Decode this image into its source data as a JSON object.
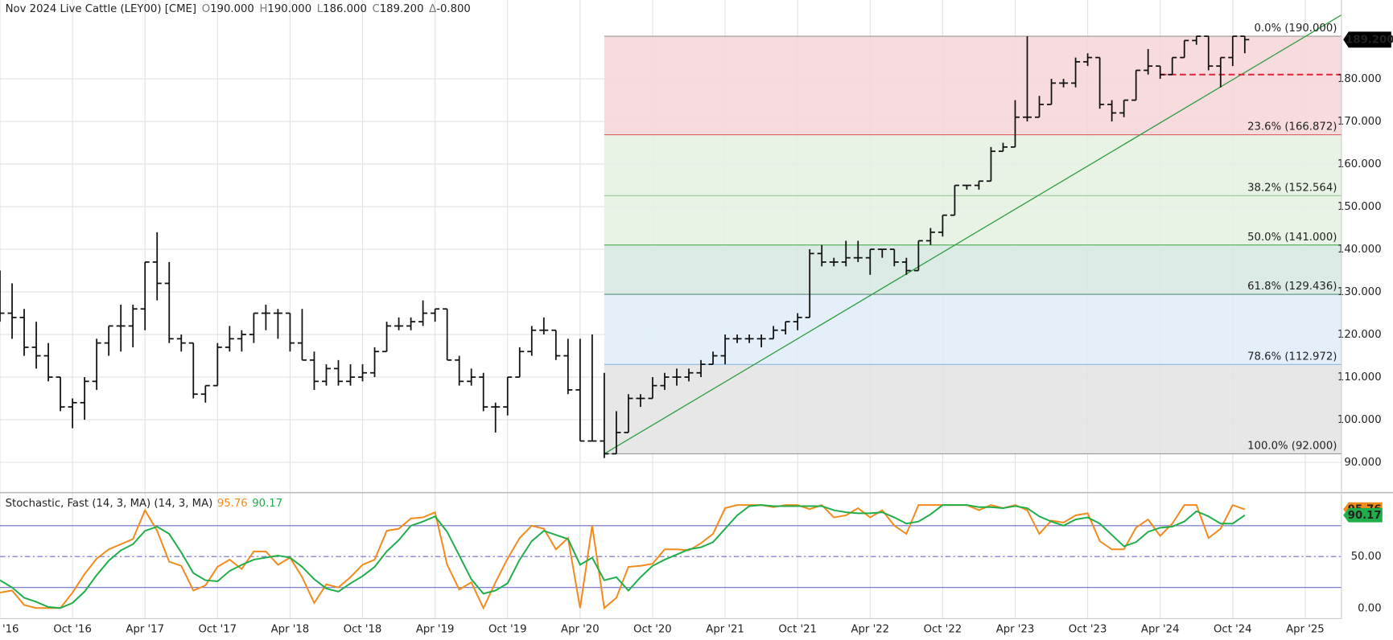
{
  "chart_data": [
    {
      "type": "ohlc",
      "title": "Nov 2024 Live Cattle (LEY00) [CME]",
      "quote": [
        {
          "label": "O",
          "value": "190.000"
        },
        {
          "label": "H",
          "value": "190.000"
        },
        {
          "label": "L",
          "value": "186.000"
        },
        {
          "label": "C",
          "value": "189.200"
        },
        {
          "label": "Δ",
          "value": "-0.800"
        }
      ],
      "x": [
        "2016-04",
        "2016-05",
        "2016-06",
        "2016-07",
        "2016-08",
        "2016-09",
        "2016-10",
        "2016-11",
        "2016-12",
        "2017-01",
        "2017-02",
        "2017-03",
        "2017-04",
        "2017-05",
        "2017-06",
        "2017-07",
        "2017-08",
        "2017-09",
        "2017-10",
        "2017-11",
        "2017-12",
        "2018-01",
        "2018-02",
        "2018-03",
        "2018-04",
        "2018-05",
        "2018-06",
        "2018-07",
        "2018-08",
        "2018-09",
        "2018-10",
        "2018-11",
        "2018-12",
        "2019-01",
        "2019-02",
        "2019-03",
        "2019-04",
        "2019-05",
        "2019-06",
        "2019-07",
        "2019-08",
        "2019-09",
        "2019-10",
        "2019-11",
        "2019-12",
        "2020-01",
        "2020-02",
        "2020-03",
        "2020-04",
        "2020-05",
        "2020-06",
        "2020-07",
        "2020-08",
        "2020-09",
        "2020-10",
        "2020-11",
        "2020-12",
        "2021-01",
        "2021-02",
        "2021-03",
        "2021-04",
        "2021-05",
        "2021-06",
        "2021-07",
        "2021-08",
        "2021-09",
        "2021-10",
        "2021-11",
        "2021-12",
        "2022-01",
        "2022-02",
        "2022-03",
        "2022-04",
        "2022-05",
        "2022-06",
        "2022-07",
        "2022-08",
        "2022-09",
        "2022-10",
        "2022-11",
        "2022-12",
        "2023-01",
        "2023-02",
        "2023-03",
        "2023-04",
        "2023-05",
        "2023-06",
        "2023-07",
        "2023-08",
        "2023-09",
        "2023-10",
        "2023-11",
        "2023-12",
        "2024-01",
        "2024-02",
        "2024-03",
        "2024-04",
        "2024-05",
        "2024-06",
        "2024-07",
        "2024-08",
        "2024-09",
        "2024-10",
        "2024-11"
      ],
      "open": [
        131,
        125,
        124,
        117,
        115,
        110,
        103,
        104,
        109,
        118,
        122,
        122,
        126,
        137,
        132,
        119,
        118,
        106,
        108,
        117,
        119,
        120,
        125,
        125,
        125,
        118,
        114,
        109,
        112,
        109,
        110,
        111,
        116,
        122,
        122,
        123,
        125,
        126,
        114,
        109,
        110,
        103,
        103,
        110,
        116,
        121,
        121,
        115,
        107,
        95,
        95,
        92,
        97,
        105,
        105,
        108,
        110,
        110,
        111,
        113,
        115,
        119,
        119,
        119,
        119,
        121,
        123,
        124,
        139,
        137,
        137,
        138,
        138,
        140,
        140,
        137,
        135,
        142,
        144,
        148,
        155,
        155,
        156,
        163,
        164,
        171,
        171,
        174,
        179,
        179,
        184,
        185,
        174,
        172,
        175,
        182,
        183,
        181,
        185,
        189,
        190,
        183,
        185,
        190
      ],
      "high": [
        135,
        132,
        126,
        123,
        118,
        110,
        105,
        110,
        119,
        122,
        127,
        127,
        137,
        144,
        137,
        120,
        118,
        108,
        118,
        122,
        121,
        125,
        127,
        126,
        125,
        126,
        116,
        113,
        114,
        113,
        113,
        117,
        123,
        124,
        124,
        128,
        126,
        126,
        115,
        112,
        111,
        104,
        110,
        117,
        122,
        124,
        121,
        119,
        119,
        120,
        111,
        102,
        106,
        106,
        110,
        111,
        112,
        112,
        114,
        116,
        120,
        120,
        120,
        120,
        122,
        123,
        125,
        140,
        141,
        138,
        142,
        142,
        140,
        140,
        140,
        138,
        142,
        145,
        148,
        155,
        155,
        156,
        164,
        165,
        175,
        190,
        176,
        180,
        180,
        185,
        186,
        185,
        175,
        175,
        182,
        187,
        183,
        185,
        189,
        190,
        190,
        185,
        190,
        190
      ],
      "low": [
        123,
        119,
        115,
        112,
        109,
        102,
        98,
        100,
        107,
        115,
        116,
        117,
        121,
        128,
        118,
        116,
        105,
        104,
        108,
        116,
        116,
        118,
        121,
        119,
        116,
        114,
        107,
        108,
        108,
        108,
        109,
        110,
        116,
        121,
        121,
        122,
        123,
        114,
        108,
        108,
        102,
        97,
        101,
        110,
        115,
        120,
        114,
        106,
        95,
        95,
        91,
        92,
        97,
        103,
        105,
        107,
        108,
        109,
        110,
        113,
        113,
        118,
        118,
        117,
        119,
        120,
        121,
        124,
        136,
        136,
        136,
        137,
        134,
        138,
        136,
        134,
        135,
        141,
        143,
        148,
        154,
        154,
        156,
        163,
        164,
        170,
        171,
        174,
        178,
        178,
        183,
        173,
        170,
        171,
        175,
        181,
        180,
        181,
        185,
        188,
        182,
        178,
        183,
        186
      ],
      "close": [
        125,
        124,
        117,
        115,
        110,
        103,
        104,
        109,
        118,
        122,
        122,
        126,
        137,
        132,
        119,
        118,
        106,
        108,
        117,
        119,
        120,
        125,
        125,
        125,
        118,
        114,
        109,
        112,
        109,
        110,
        111,
        116,
        122,
        122,
        123,
        125,
        126,
        114,
        109,
        110,
        103,
        103,
        110,
        116,
        121,
        121,
        115,
        107,
        95,
        95,
        92,
        97,
        105,
        105,
        108,
        110,
        110,
        111,
        113,
        115,
        119,
        119,
        119,
        119,
        121,
        123,
        124,
        139,
        137,
        137,
        138,
        138,
        140,
        140,
        137,
        135,
        142,
        144,
        148,
        155,
        155,
        156,
        163,
        164,
        171,
        171,
        174,
        179,
        179,
        184,
        185,
        174,
        172,
        175,
        182,
        183,
        181,
        185,
        189,
        190,
        183,
        185,
        190,
        189.2
      ],
      "close_label": "189.200",
      "color": "#111111",
      "xlim": [
        "2016-04",
        "2025-07"
      ],
      "xticks": [
        {
          "value": "2016-04",
          "label": "'16"
        },
        {
          "value": "2016-10",
          "label": "Oct '16"
        },
        {
          "value": "2017-04",
          "label": "Apr '17"
        },
        {
          "value": "2017-10",
          "label": "Oct '17"
        },
        {
          "value": "2018-04",
          "label": "Apr '18"
        },
        {
          "value": "2018-10",
          "label": "Oct '18"
        },
        {
          "value": "2019-04",
          "label": "Apr '19"
        },
        {
          "value": "2019-10",
          "label": "Oct '19"
        },
        {
          "value": "2020-04",
          "label": "Apr '20"
        },
        {
          "value": "2020-10",
          "label": "Oct '20"
        },
        {
          "value": "2021-04",
          "label": "Apr '21"
        },
        {
          "value": "2021-10",
          "label": "Oct '21"
        },
        {
          "value": "2022-04",
          "label": "Apr '22"
        },
        {
          "value": "2022-10",
          "label": "Oct '22"
        },
        {
          "value": "2023-04",
          "label": "Apr '23"
        },
        {
          "value": "2023-10",
          "label": "Oct '23"
        },
        {
          "value": "2024-04",
          "label": "Apr '24"
        },
        {
          "value": "2024-10",
          "label": "Oct '24"
        },
        {
          "value": "2025-04",
          "label": "Apr '25"
        }
      ],
      "ylim": [
        83.3,
        198.5
      ],
      "yticks": [
        {
          "value": 90,
          "label": "90.000"
        },
        {
          "value": 100,
          "label": "100.000"
        },
        {
          "value": 110,
          "label": "110.000"
        },
        {
          "value": 120,
          "label": "120.000"
        },
        {
          "value": 130,
          "label": "130.000"
        },
        {
          "value": 140,
          "label": "140.000"
        },
        {
          "value": 150,
          "label": "150.000"
        },
        {
          "value": 160,
          "label": "160.000"
        },
        {
          "value": 170,
          "label": "170.000"
        },
        {
          "value": 180,
          "label": "180.000"
        }
      ],
      "grid": true,
      "fib": {
        "start": "2020-06",
        "levels": [
          {
            "value": 190,
            "label": "0.0% (190.000)",
            "color": "#9a9a9a"
          },
          {
            "value": 166.872,
            "label": "23.6% (166.872)",
            "color": "#d9534f",
            "fill": "#f7d7da"
          },
          {
            "value": 152.564,
            "label": "38.2% (152.564)",
            "color": "#9ccc9a",
            "fill": "#e5f1e2"
          },
          {
            "value": 141,
            "label": "50.0% (141.000)",
            "color": "#4caf50",
            "fill": "#e5f1e2"
          },
          {
            "value": 129.436,
            "label": "61.8% (129.436)",
            "color": "#5b8f7e",
            "fill": "#d9e9e4"
          },
          {
            "value": 112.972,
            "label": "78.6% (112.972)",
            "color": "#8cb8e3",
            "fill": "#e1edf9"
          },
          {
            "value": 92,
            "label": "100.0% (92.000)",
            "color": "#9a9a9a",
            "fill": "#e4e4e4"
          }
        ]
      },
      "trendline": {
        "x": [
          "2020-06",
          "2025-07"
        ],
        "y": [
          92,
          195
        ],
        "color": "#2e9e40"
      },
      "support": {
        "from": "2024-04",
        "value": 181,
        "color": "#e0223a"
      }
    },
    {
      "type": "stochastic",
      "title": "Stochastic, Fast (14, 3, MA)  (14, 3, MA)",
      "series": [
        {
          "color": "#f28a1c",
          "values": [
            15,
            17,
            3,
            0,
            0,
            0,
            15,
            33,
            48,
            57,
            62,
            67,
            95,
            75,
            45,
            41,
            17,
            22,
            40,
            47,
            38,
            55,
            55,
            42,
            49,
            30,
            5,
            23,
            20,
            30,
            42,
            47,
            75,
            77,
            87,
            88,
            93,
            42,
            18,
            25,
            0,
            25,
            48,
            68,
            80,
            77,
            57,
            68,
            0,
            80,
            0,
            10,
            40,
            41,
            43,
            57,
            57,
            56,
            63,
            72,
            97,
            100,
            100,
            100,
            98,
            100,
            100,
            96,
            100,
            88,
            90,
            97,
            88,
            95,
            80,
            72,
            100,
            100,
            100,
            100,
            100,
            95,
            100,
            97,
            100,
            95,
            72,
            85,
            83,
            90,
            92,
            65,
            57,
            57,
            78,
            86,
            70,
            82,
            100,
            100,
            68,
            77,
            100,
            95.76
          ]
        },
        {
          "color": "#1fae4a",
          "values": [
            27,
            20,
            10,
            6,
            1,
            0,
            5,
            16,
            32,
            46,
            56,
            62,
            75,
            79,
            72,
            54,
            34,
            27,
            26,
            36,
            42,
            47,
            49,
            51,
            49,
            40,
            28,
            19,
            16,
            24,
            31,
            40,
            55,
            66,
            80,
            84,
            89,
            74,
            51,
            28,
            14,
            17,
            24,
            47,
            65,
            75,
            71,
            67,
            42,
            49,
            27,
            30,
            17,
            30,
            41,
            47,
            52,
            57,
            59,
            64,
            77,
            90,
            99,
            100,
            99,
            99,
            99,
            99,
            99,
            95,
            93,
            92,
            92,
            93,
            88,
            82,
            84,
            91,
            100,
            100,
            100,
            98,
            98,
            97,
            99,
            97,
            89,
            84,
            80,
            86,
            88,
            82,
            71,
            60,
            64,
            74,
            78,
            79,
            84,
            94,
            89,
            82,
            82,
            90.17
          ]
        }
      ],
      "ylim": [
        -10.3,
        111.2
      ],
      "yticks": [
        {
          "value": 0,
          "label": "0.00"
        },
        {
          "value": 50,
          "label": "50.00"
        }
      ],
      "bands": [
        20,
        80
      ],
      "band_color": "#6b6bc9",
      "midline": 50
    }
  ]
}
